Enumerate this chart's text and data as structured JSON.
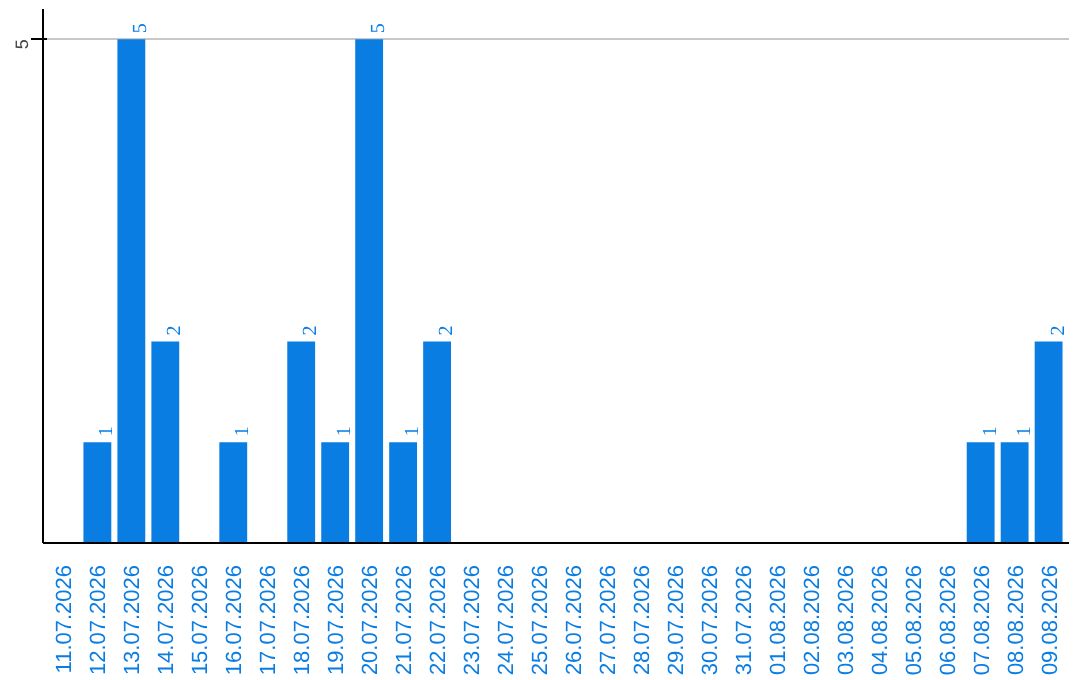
{
  "chart_data": {
    "type": "bar",
    "categories": [
      "11.07.2026",
      "12.07.2026",
      "13.07.2026",
      "14.07.2026",
      "15.07.2026",
      "16.07.2026",
      "17.07.2026",
      "18.07.2026",
      "19.07.2026",
      "20.07.2026",
      "21.07.2026",
      "22.07.2026",
      "23.07.2026",
      "24.07.2026",
      "25.07.2026",
      "26.07.2026",
      "27.07.2026",
      "28.07.2026",
      "29.07.2026",
      "30.07.2026",
      "31.07.2026",
      "01.08.2026",
      "02.08.2026",
      "03.08.2026",
      "04.08.2026",
      "05.08.2026",
      "06.08.2026",
      "07.08.2026",
      "08.08.2026",
      "09.08.2026"
    ],
    "values": [
      0,
      1,
      5,
      2,
      0,
      1,
      0,
      2,
      1,
      5,
      1,
      2,
      0,
      0,
      0,
      0,
      0,
      0,
      0,
      0,
      0,
      0,
      0,
      0,
      0,
      0,
      0,
      1,
      1,
      2
    ],
    "value_labels": [
      null,
      "1",
      "5",
      "2",
      null,
      "1",
      null,
      "2",
      "1",
      "5",
      "1",
      "2",
      null,
      null,
      null,
      null,
      null,
      null,
      null,
      null,
      null,
      null,
      null,
      null,
      null,
      null,
      null,
      "1",
      "1",
      "2"
    ],
    "color": "#0a7de3",
    "ylim": [
      0,
      5.3
    ],
    "yticks": [
      5
    ],
    "grid": "y"
  }
}
